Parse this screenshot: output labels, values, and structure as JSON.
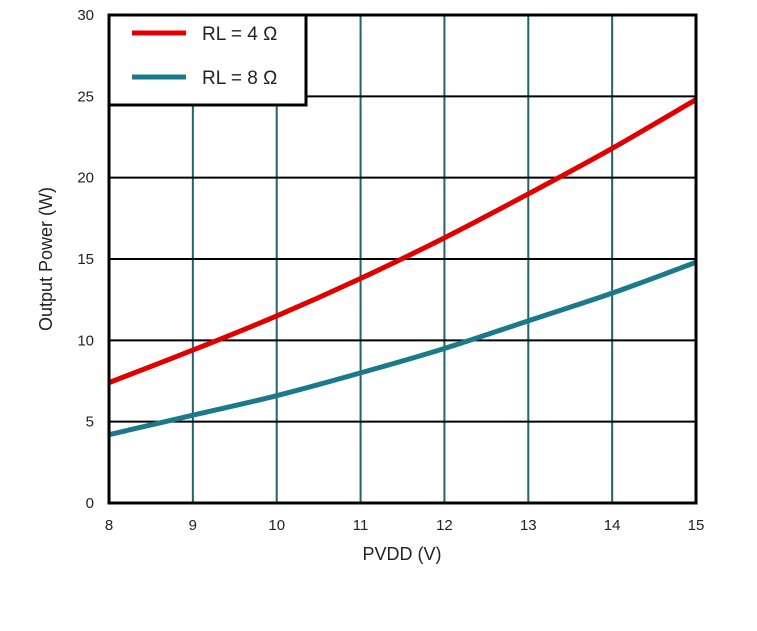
{
  "chart_data": {
    "type": "line",
    "title": "",
    "xlabel": "PVDD (V)",
    "ylabel": "Output Power (W)",
    "xlim": [
      8,
      15
    ],
    "ylim": [
      0,
      30
    ],
    "xticks": [
      8,
      9,
      10,
      11,
      12,
      13,
      14,
      15
    ],
    "yticks": [
      0,
      5,
      10,
      15,
      20,
      25,
      30
    ],
    "grid": true,
    "legend_position": "top-left",
    "x": [
      8,
      9,
      10,
      11,
      12,
      13,
      14,
      15
    ],
    "series": [
      {
        "name": "RL = 4 Ω",
        "color": "#e00000",
        "values": [
          7.4,
          9.4,
          11.5,
          13.8,
          16.3,
          19.0,
          21.8,
          24.8
        ]
      },
      {
        "name": "RL = 8 Ω",
        "color": "#1a7a8a",
        "values": [
          4.2,
          5.4,
          6.6,
          8.0,
          9.5,
          11.2,
          12.9,
          14.8
        ]
      }
    ],
    "colors": {
      "vertical_grid": "#1f6470",
      "horizontal_grid": "#000000",
      "frame": "#000000"
    }
  }
}
